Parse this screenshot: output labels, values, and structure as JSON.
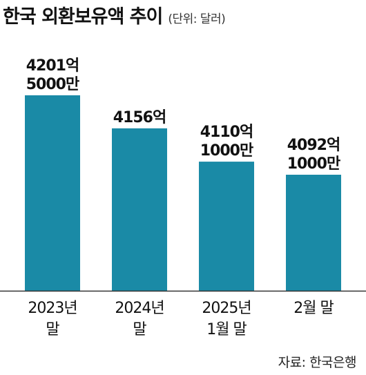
{
  "header": {
    "title": "한국 외환보유액 추이",
    "unit_note": "(단위: 달러)"
  },
  "source": "자료: 한국은행",
  "colors": {
    "bar": "#1a8aa6",
    "baseline": "#333333"
  },
  "chart_data": {
    "type": "bar",
    "categories": [
      "2023년 말",
      "2024년 말",
      "2025년 1월 말",
      "2월 말"
    ],
    "category_label_lines": [
      [
        "2023년",
        "말"
      ],
      [
        "2024년",
        "말"
      ],
      [
        "2025년",
        "1월 말"
      ],
      [
        "2월 말"
      ]
    ],
    "values": [
      420150000000,
      415600000000,
      411010000000,
      409210000000
    ],
    "data_label_lines": [
      [
        "4201억",
        "5000만"
      ],
      [
        "4156억"
      ],
      [
        "4110억",
        "1000만"
      ],
      [
        "4092억",
        "1000만"
      ]
    ],
    "unit": "달러",
    "grid": false,
    "legend": "none"
  }
}
